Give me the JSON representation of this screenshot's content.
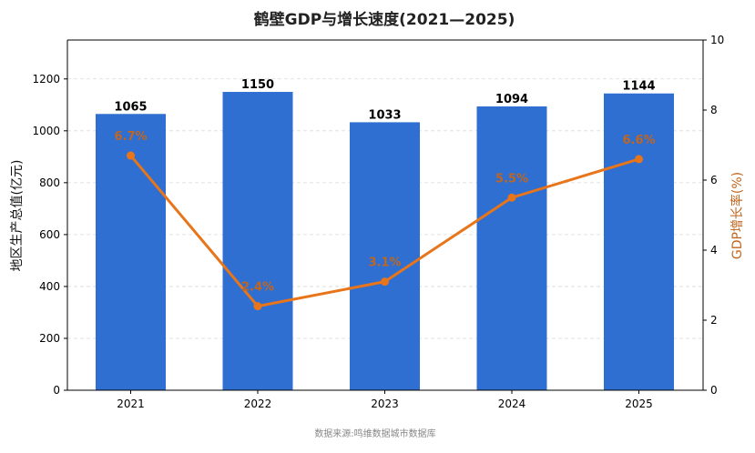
{
  "chart_data": {
    "type": "bar",
    "title": "鹤壁GDP与增长速度(2021—2025)",
    "categories": [
      "2021",
      "2022",
      "2023",
      "2024",
      "2025"
    ],
    "series": [
      {
        "name": "地区生产总值(亿元)",
        "type": "bar",
        "axis": "left",
        "values": [
          1065,
          1150,
          1033,
          1094,
          1144
        ],
        "labels": [
          "1065",
          "1150",
          "1033",
          "1094",
          "1144"
        ]
      },
      {
        "name": "GDP增长率(%)",
        "type": "line",
        "axis": "right",
        "values": [
          6.7,
          2.4,
          3.1,
          5.5,
          6.6
        ],
        "labels": [
          "6.7%",
          "2.4%",
          "3.1%",
          "5.5%",
          "6.6%"
        ]
      }
    ],
    "ylabel": "地区生产总值(亿元)",
    "ylabel_right": "GDP增长率(%)",
    "ylim": [
      0,
      1350
    ],
    "ylim_right": [
      0,
      10
    ],
    "yticks": [
      0,
      200,
      400,
      600,
      800,
      1000,
      1200
    ],
    "yticks_right": [
      0,
      2,
      4,
      6,
      8,
      10
    ],
    "grid": "horizontal-dashed",
    "colors": {
      "bar": "#2f6fd1",
      "line": "#e8751a",
      "rate_label": "#c0661f",
      "right_axis_label": "#c0661f"
    }
  },
  "footer": {
    "source": "数据来源:鸣维数据城市数据库"
  }
}
